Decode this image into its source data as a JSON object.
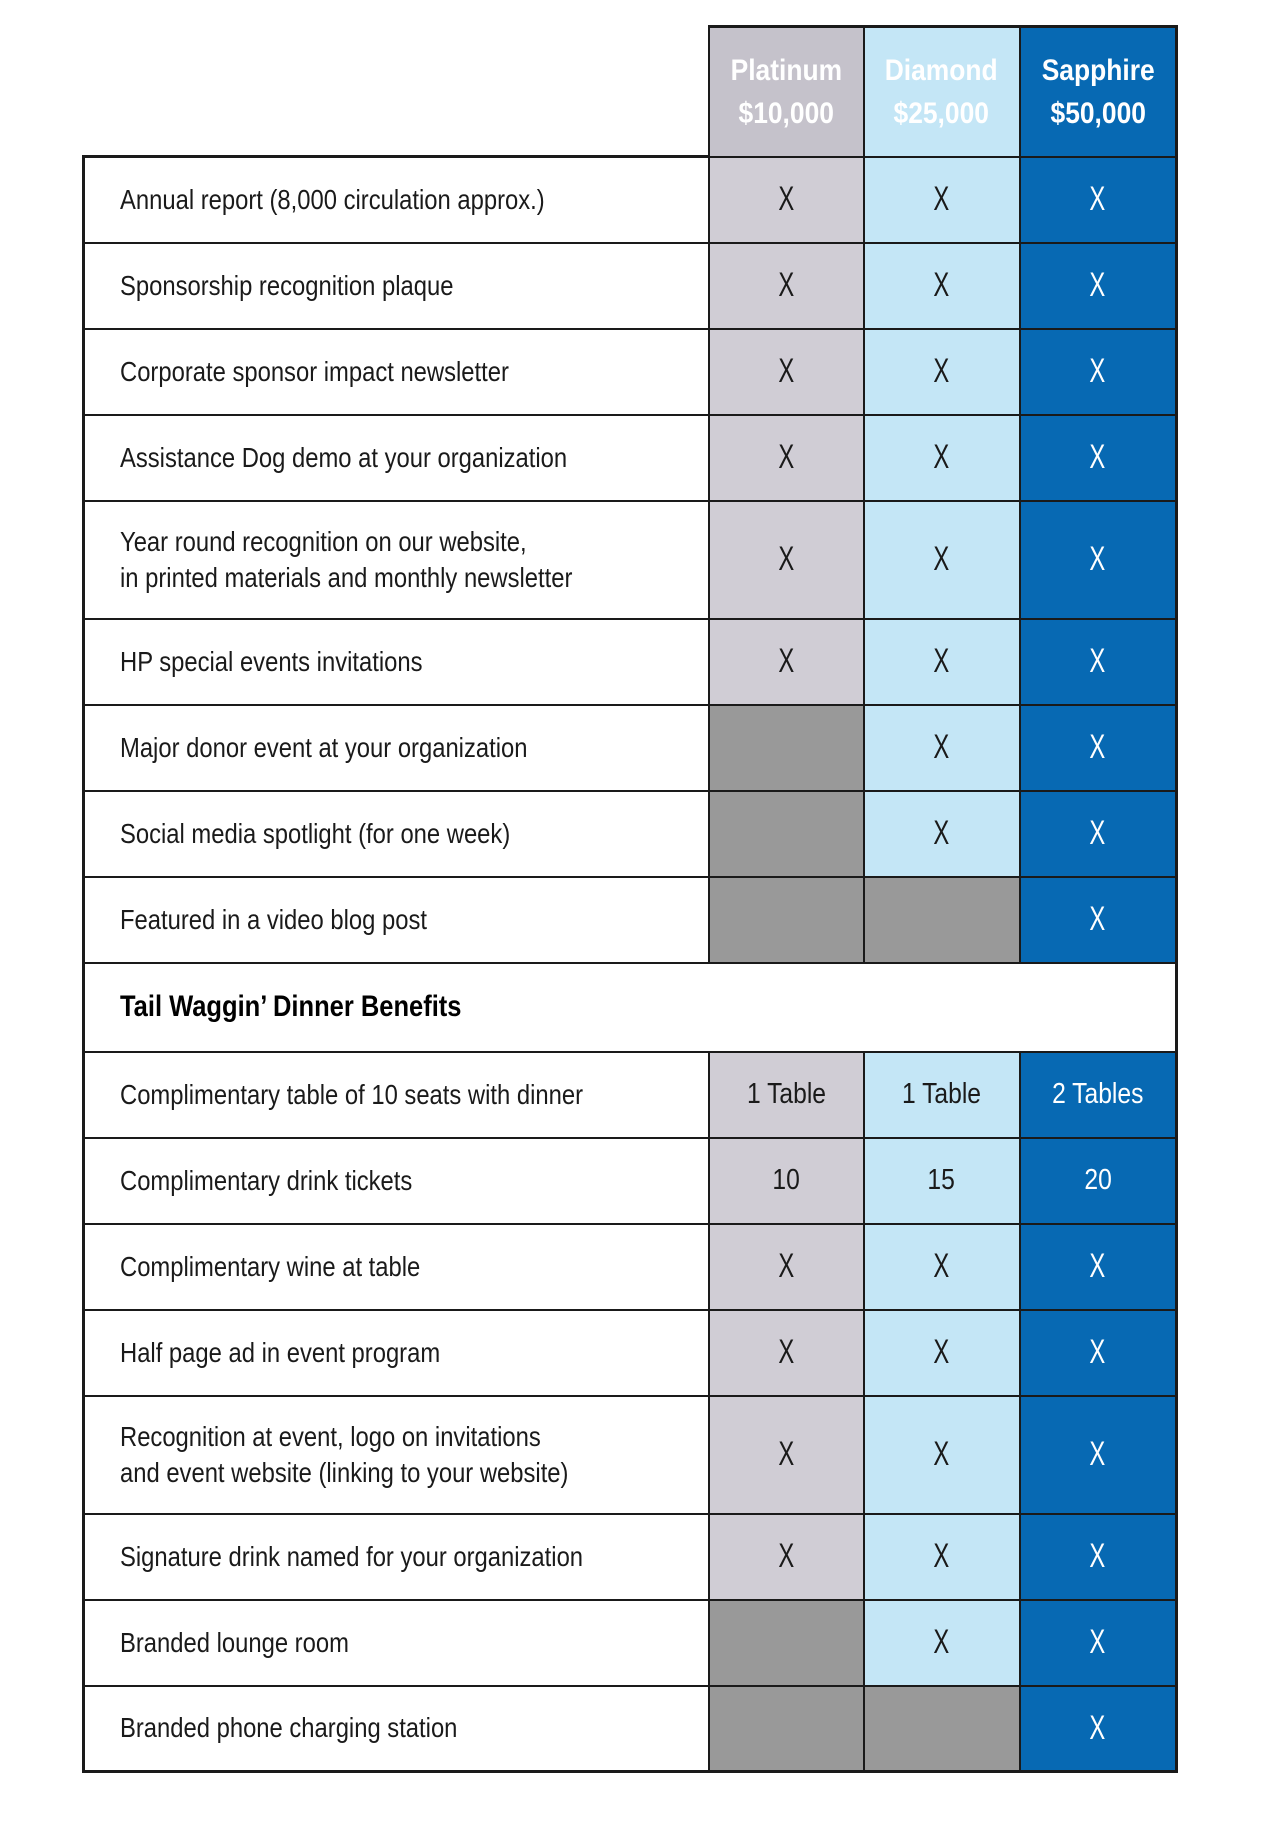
{
  "tiers": [
    {
      "name": "Platinum",
      "amount": "$10,000"
    },
    {
      "name": "Diamond",
      "amount": "$25,000"
    },
    {
      "name": "Sapphire",
      "amount": "$50,000"
    }
  ],
  "rows": [
    {
      "type": "benefit",
      "label": "Annual report (8,000 circulation approx.)",
      "values": [
        "X",
        "X",
        "X"
      ]
    },
    {
      "type": "benefit",
      "label": "Sponsorship recognition plaque",
      "values": [
        "X",
        "X",
        "X"
      ]
    },
    {
      "type": "benefit",
      "label": "Corporate sponsor impact newsletter",
      "values": [
        "X",
        "X",
        "X"
      ]
    },
    {
      "type": "benefit",
      "label": "Assistance Dog demo at your organization",
      "values": [
        "X",
        "X",
        "X"
      ]
    },
    {
      "type": "benefit",
      "tall": true,
      "label": "Year round recognition on our website,\nin printed materials and monthly newsletter",
      "values": [
        "X",
        "X",
        "X"
      ]
    },
    {
      "type": "benefit",
      "label": "HP special events invitations",
      "values": [
        "X",
        "X",
        "X"
      ]
    },
    {
      "type": "benefit",
      "label": "Major donor event at your organization",
      "values": [
        "",
        "X",
        "X"
      ]
    },
    {
      "type": "benefit",
      "label": "Social media spotlight (for one week)",
      "values": [
        "",
        "X",
        "X"
      ]
    },
    {
      "type": "benefit",
      "label": "Featured in a video blog post",
      "values": [
        "",
        "",
        "X"
      ]
    },
    {
      "type": "section",
      "label": "Tail Waggin’ Dinner Benefits"
    },
    {
      "type": "benefit",
      "label": "Complimentary table of 10 seats with dinner",
      "values": [
        "1 Table",
        "1 Table",
        "2 Tables"
      ]
    },
    {
      "type": "benefit",
      "label": "Complimentary drink tickets",
      "values": [
        "10",
        "15",
        "20"
      ]
    },
    {
      "type": "benefit",
      "label": "Complimentary wine at table",
      "values": [
        "X",
        "X",
        "X"
      ]
    },
    {
      "type": "benefit",
      "label": "Half page ad in event program",
      "values": [
        "X",
        "X",
        "X"
      ]
    },
    {
      "type": "benefit",
      "tall": true,
      "label": "Recognition at event, logo on invitations\nand event website (linking to your website)",
      "values": [
        "X",
        "X",
        "X"
      ]
    },
    {
      "type": "benefit",
      "label": "Signature drink named for your organization",
      "values": [
        "X",
        "X",
        "X"
      ]
    },
    {
      "type": "benefit",
      "label": "Branded lounge room",
      "values": [
        "",
        "X",
        "X"
      ]
    },
    {
      "type": "benefit",
      "label": "Branded phone charging station",
      "values": [
        "",
        "",
        "X"
      ]
    }
  ],
  "colors": {
    "platinum_header": "#c5c2cb",
    "platinum_cell": "#d0cdd5",
    "diamond_header": "#c4e6f6",
    "diamond_cell": "#c4e6f6",
    "sapphire": "#0769b3",
    "empty_cell": "#999999",
    "border": "#1a1a1a",
    "text": "#1a1a1a",
    "header_text": "#ffffff"
  }
}
